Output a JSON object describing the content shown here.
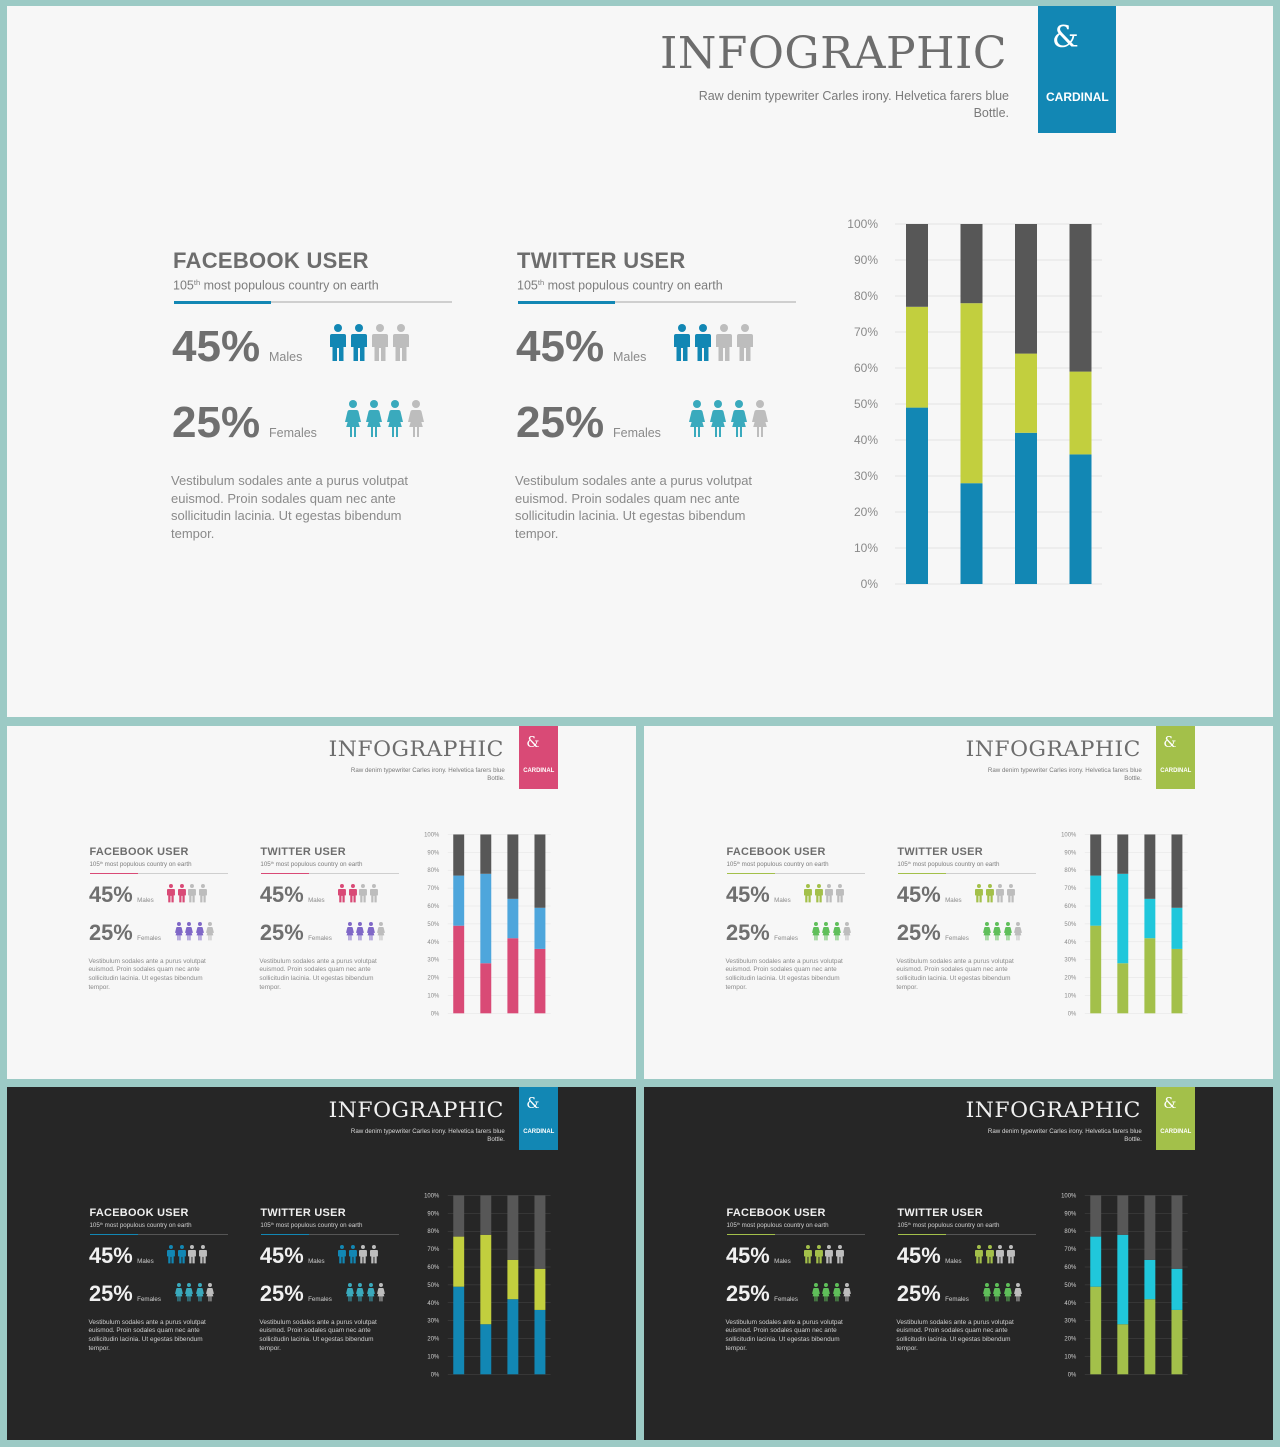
{
  "content": {
    "title": "INFOGRAPHIC",
    "subtitle": "Raw denim typewriter Carles irony. Helvetica farers blue Bottle.",
    "badge_symbol": "&",
    "badge_label": "CARDINAL",
    "facebook": {
      "title": "FACEBOOK USER",
      "rank": "105",
      "rank_sup": "th",
      "rank_text": "most populous country on earth",
      "males_pct": "45%",
      "males_label": "Males",
      "females_pct": "25%",
      "females_label": "Females",
      "body": "Vestibulum sodales ante a purus volutpat euismod. Proin sodales quam nec ante sollicitudin lacinia. Ut egestas bibendum tempor."
    },
    "twitter": {
      "title": "TWITTER USER",
      "rank": "105",
      "rank_sup": "th",
      "rank_text": "most populous country on earth",
      "males_pct": "45%",
      "males_label": "Males",
      "females_pct": "25%",
      "females_label": "Females",
      "body": "Vestibulum sodales ante a purus volutpat euismod. Proin sodales quam nec ante sollicitudin lacinia. Ut egestas bibendum tempor."
    },
    "stats": {
      "males_fraction": 0.45,
      "females_fraction": 0.25,
      "males_icons_colored": 2,
      "males_icons_total": 4,
      "females_icons_colored": 3,
      "females_icons_total": 4,
      "underline_fraction": 0.35
    }
  },
  "chart_data": {
    "type": "bar",
    "stacked": true,
    "categories": [
      "",
      "",
      "",
      ""
    ],
    "series": [
      {
        "values": [
          49,
          28,
          42,
          36
        ]
      },
      {
        "values": [
          28,
          50,
          22,
          23
        ]
      },
      {
        "values": [
          23,
          22,
          36,
          41
        ]
      }
    ],
    "yticks": [
      "0%",
      "10%",
      "20%",
      "30%",
      "40%",
      "50%",
      "60%",
      "70%",
      "80%",
      "90%",
      "100%"
    ],
    "ylim": [
      0,
      100
    ],
    "grid": true,
    "legend": "none"
  },
  "slides": [
    {
      "theme": "light",
      "colors": {
        "accent": "#1287b4",
        "series": [
          "#1287b4",
          "#c2cf3e",
          "#575757"
        ],
        "male_icon": "#1287b4",
        "female_icon": "#3aaabd",
        "icon_off": "#bdbdbd"
      }
    },
    {
      "theme": "light",
      "colors": {
        "accent": "#d94a76",
        "series": [
          "#d94a76",
          "#4ea6dc",
          "#575757"
        ],
        "male_icon": "#d94a76",
        "female_icon": "#7f67c7",
        "icon_off": "#bdbdbd"
      }
    },
    {
      "theme": "light",
      "colors": {
        "accent": "#a3c04a",
        "series": [
          "#a3c04a",
          "#20c7db",
          "#575757"
        ],
        "male_icon": "#a3c04a",
        "female_icon": "#5fbf5a",
        "icon_off": "#bdbdbd"
      }
    },
    {
      "theme": "dark",
      "colors": {
        "accent": "#1287b4",
        "series": [
          "#1287b4",
          "#c2cf3e",
          "#575757"
        ],
        "male_icon": "#1287b4",
        "female_icon": "#3aaabd",
        "icon_off": "#bdbdbd"
      }
    },
    {
      "theme": "dark",
      "colors": {
        "accent": "#a3c04a",
        "series": [
          "#a3c04a",
          "#20c7db",
          "#575757"
        ],
        "male_icon": "#a3c04a",
        "female_icon": "#5fbf5a",
        "icon_off": "#bdbdbd"
      }
    }
  ]
}
